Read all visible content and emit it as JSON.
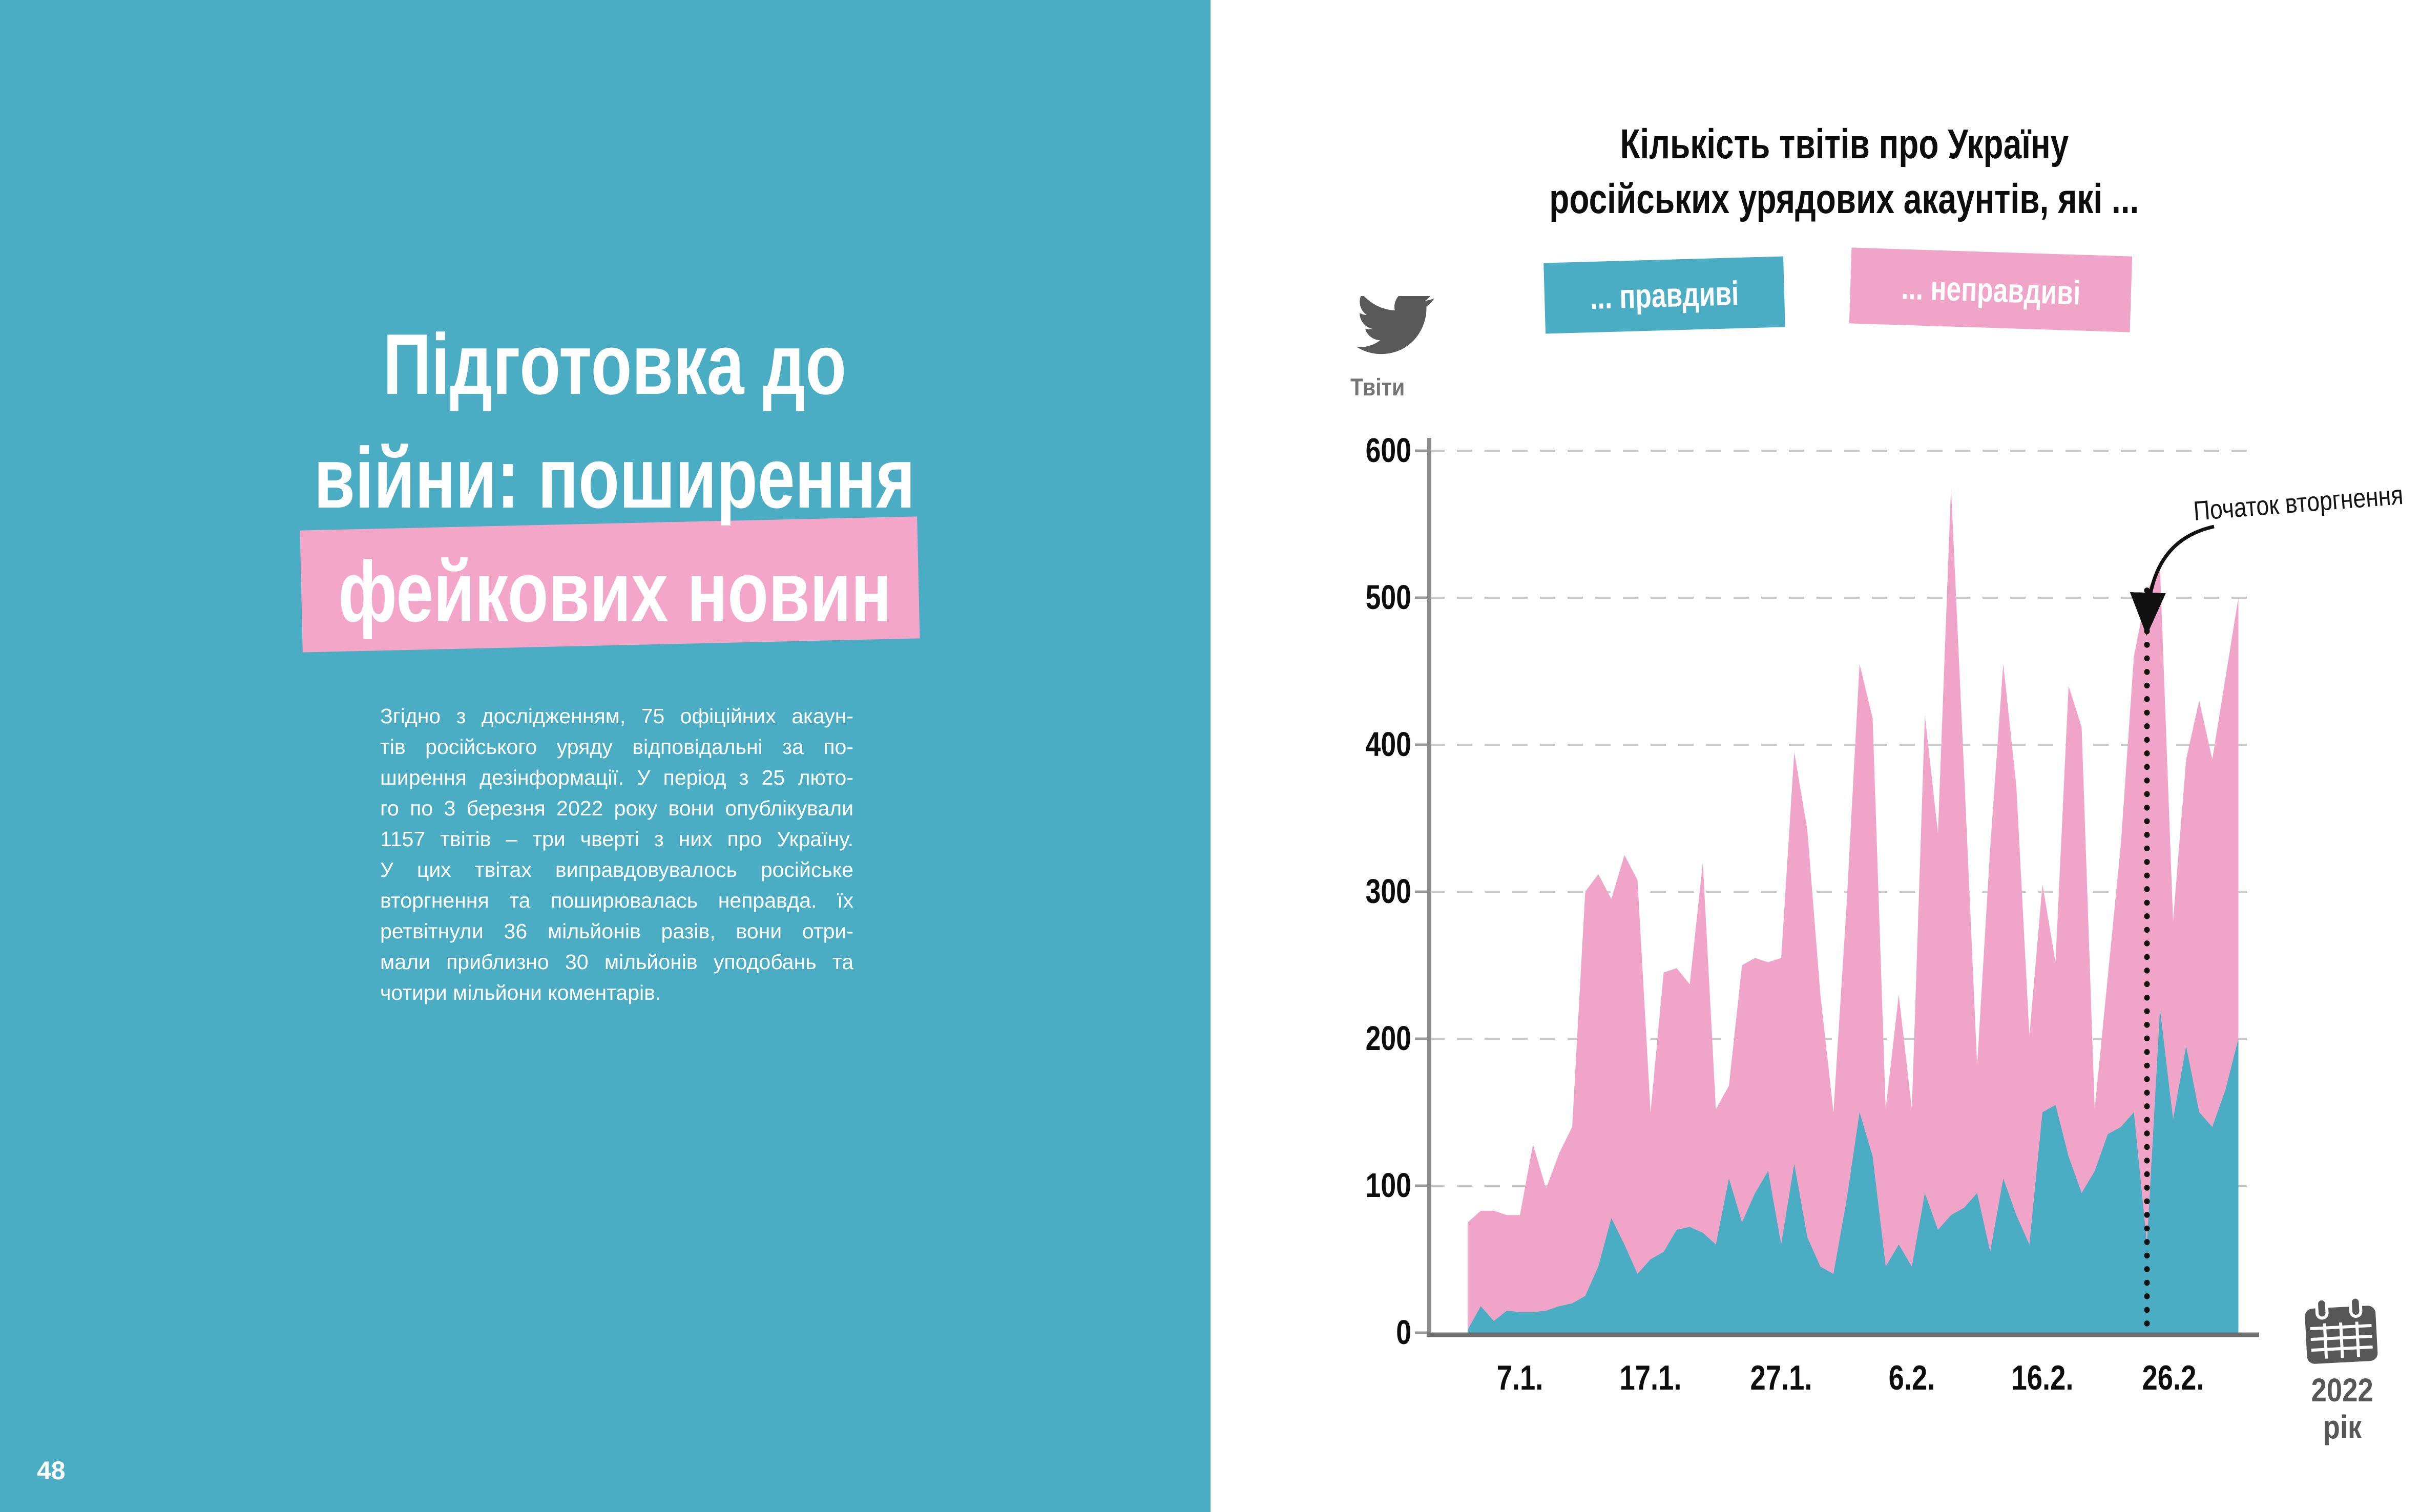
{
  "left_page": {
    "title_line1": "Підготовка до",
    "title_line2": "війни: поширення",
    "title_line3": "фейкових новин",
    "body_lines": [
      "Згідно з дослідженням, 75 офіційних акаун-",
      "тів російського уряду відповідальні за по-",
      "ширення дезінформації. У період з 25 люто-",
      "го по 3 березня 2022 року вони опублікували",
      "1157 твітів – три чверті з них про Україну.",
      "У цих твітах виправдовувалось російське",
      "вторгнення та поширювалась неправда. їх",
      "ретвітнули 36 мільйонів разів, вони отри-",
      "мали приблизно 30 мільйонів уподобань та",
      "чотири мільйони коментарів."
    ],
    "page_number": "48"
  },
  "right_page": {
    "title_line1": "Кількість твітів про Україну",
    "title_line2": "російських урядових акаунтів, які ...",
    "tweets_label": "Твіти",
    "year_line1": "2022",
    "year_line2": "рік"
  },
  "chart_data": {
    "type": "area",
    "title": "Кількість твітів про Україну російських урядових акаунтів, які ...",
    "ylabel": "Твіти",
    "ylim": [
      0,
      600
    ],
    "yticks": [
      0,
      100,
      200,
      300,
      400,
      500,
      600
    ],
    "grid": "dashed horizontal gridlines",
    "legend_position": "top",
    "x_start_date": "3.1.2022",
    "x_end_date": "3.3.2022",
    "x_is_daily": true,
    "xtick_labels": [
      "7.1.",
      "17.1.",
      "27.1.",
      "6.2.",
      "16.2.",
      "26.2."
    ],
    "xtick_day_index": [
      4,
      14,
      24,
      34,
      44,
      54
    ],
    "event_line": {
      "label": "Початок вторгнення",
      "date": "24.2.",
      "day_index": 52,
      "top_value": 505,
      "style": "black dotted vertical line with curved arrow annotation"
    },
    "series": [
      {
        "name": "... правдиві",
        "color": "#4aadc3",
        "values": [
          2,
          18,
          8,
          15,
          14,
          14,
          15,
          18,
          20,
          25,
          45,
          78,
          60,
          40,
          50,
          55,
          70,
          72,
          68,
          60,
          105,
          75,
          95,
          110,
          60,
          115,
          65,
          45,
          40,
          90,
          150,
          120,
          45,
          60,
          45,
          95,
          70,
          80,
          85,
          95,
          55,
          105,
          80,
          60,
          150,
          155,
          120,
          95,
          110,
          135,
          140,
          150,
          60,
          220,
          145,
          195,
          150,
          140,
          165,
          200
        ]
      },
      {
        "name": "... неправдиві",
        "color": "#f0a4c7",
        "values": [
          75,
          83,
          83,
          80,
          80,
          128,
          98,
          122,
          140,
          300,
          312,
          295,
          325,
          308,
          150,
          245,
          248,
          237,
          320,
          152,
          168,
          250,
          255,
          252,
          255,
          395,
          342,
          230,
          150,
          290,
          455,
          418,
          152,
          230,
          152,
          420,
          340,
          575,
          382,
          182,
          330,
          455,
          372,
          202,
          305,
          252,
          440,
          412,
          152,
          242,
          332,
          460,
          505,
          520,
          280,
          390,
          430,
          390,
          445,
          500
        ]
      }
    ]
  }
}
